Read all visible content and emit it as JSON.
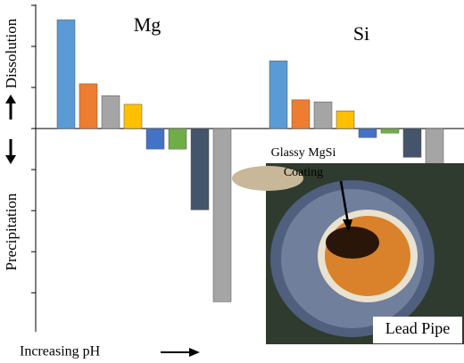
{
  "chart_data": {
    "type": "bar",
    "categories": [
      "Mg",
      "Si"
    ],
    "series": [
      {
        "color": "#5b9bd5",
        "values": [
          2.65,
          1.65
        ]
      },
      {
        "color": "#ed7d31",
        "values": [
          1.09,
          0.7
        ]
      },
      {
        "color": "#a5a5a5",
        "values": [
          0.8,
          0.65
        ]
      },
      {
        "color": "#ffc000",
        "values": [
          0.59,
          0.43
        ]
      },
      {
        "color": "#4472c4",
        "values": [
          -0.5,
          -0.22
        ]
      },
      {
        "color": "#70ad47",
        "values": [
          -0.5,
          -0.11
        ]
      },
      {
        "color": "#44546a",
        "values": [
          -1.98,
          -0.7
        ]
      },
      {
        "color": "#a5a5a5",
        "values": [
          -4.22,
          -0.85
        ]
      }
    ],
    "ylim": [
      -4.95,
      3.0
    ],
    "yticks": [
      -4,
      -3,
      -2,
      -1,
      0,
      1,
      2,
      3
    ],
    "y_label_top": "Dissolution",
    "y_label_bottom": "Precipitation",
    "x_label": "Increasing pH",
    "annotations": [
      "Glassy MgSi",
      "Coating",
      "Lead Pipe"
    ]
  }
}
